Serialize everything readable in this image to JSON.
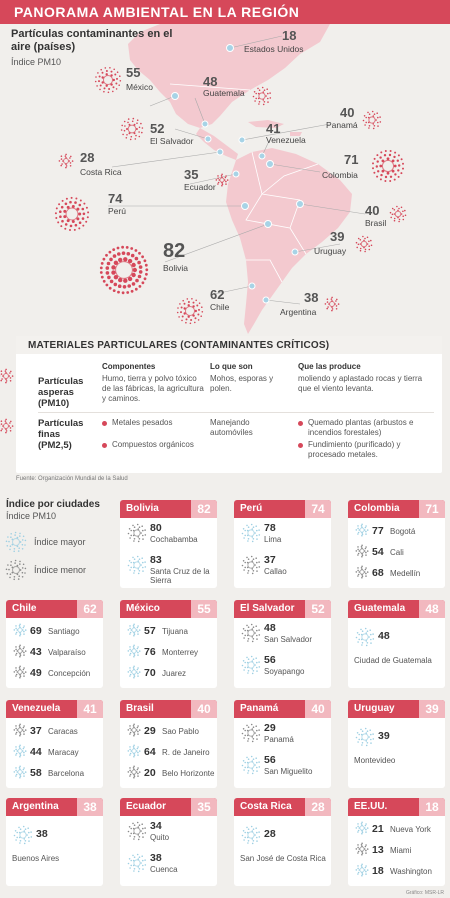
{
  "header": {
    "title": "PANORAMA AMBIENTAL EN LA REGIÓN"
  },
  "map": {
    "title": "Partículas contaminantes en el aire (países)",
    "subtitle": "Índice PM10",
    "countries": [
      {
        "name": "Estados Unidos",
        "value": "18"
      },
      {
        "name": "México",
        "value": "55"
      },
      {
        "name": "Guatemala",
        "value": "48"
      },
      {
        "name": "El Salvador",
        "value": "52"
      },
      {
        "name": "Panamá",
        "value": "40"
      },
      {
        "name": "Venezuela",
        "value": "41"
      },
      {
        "name": "Costa Rica",
        "value": "28"
      },
      {
        "name": "Colombia",
        "value": "71"
      },
      {
        "name": "Ecuador",
        "value": "35"
      },
      {
        "name": "Perú",
        "value": "74"
      },
      {
        "name": "Brasil",
        "value": "40"
      },
      {
        "name": "Uruguay",
        "value": "39"
      },
      {
        "name": "Bolivia",
        "value": "82"
      },
      {
        "name": "Chile",
        "value": "62"
      },
      {
        "name": "Argentina",
        "value": "38"
      }
    ]
  },
  "materials": {
    "heading": "MATERIALES PARTICULARES (CONTAMINANTES CRÍTICOS)",
    "col_components": "Componentes",
    "col_what": "Lo que son",
    "col_produce": "Que las produce",
    "coarse": {
      "name": "Partículas asperas (PM10)",
      "components": "Humo, tierra y polvo tóxico de las fábricas, la agricultura y caminos.",
      "what": "Mohos, esporas y polen.",
      "produce": "moliendo y aplastado rocas y tierra que el viento levanta."
    },
    "fine": {
      "name": "Partículas finas (PM2,5)",
      "components": [
        "Metales pesados",
        "Compuestos orgánicos"
      ],
      "what": "Manejando automóviles",
      "produce": [
        "Quemado plantas (arbustos e incendios forestales)",
        "Fundimiento (purificado) y procesado metales."
      ]
    },
    "source": "Fuente: Organización Mundial de la Salud"
  },
  "cities": {
    "title": "Índice por ciudades",
    "subtitle": "Índice PM10",
    "legend_high": "Índice mayor",
    "legend_low": "Índice menor",
    "cards": [
      {
        "country": "Bolivia",
        "value": "82",
        "rows": [
          {
            "v": "80",
            "c": "Cochabamba"
          },
          {
            "v": "83",
            "c": "Santa Cruz de la Sierra"
          }
        ]
      },
      {
        "country": "Perú",
        "value": "74",
        "rows": [
          {
            "v": "78",
            "c": "Lima"
          },
          {
            "v": "37",
            "c": "Callao"
          }
        ]
      },
      {
        "country": "Colombia",
        "value": "71",
        "rows": [
          {
            "v": "77",
            "c": "Bogotá"
          },
          {
            "v": "54",
            "c": "Cali"
          },
          {
            "v": "68",
            "c": "Medellín"
          }
        ]
      },
      {
        "country": "Chile",
        "value": "62",
        "rows": [
          {
            "v": "69",
            "c": "Santiago"
          },
          {
            "v": "43",
            "c": "Valparaíso"
          },
          {
            "v": "49",
            "c": "Concepción"
          }
        ]
      },
      {
        "country": "México",
        "value": "55",
        "rows": [
          {
            "v": "57",
            "c": "Tijuana"
          },
          {
            "v": "76",
            "c": "Monterrey"
          },
          {
            "v": "70",
            "c": "Juarez"
          }
        ]
      },
      {
        "country": "El Salvador",
        "value": "52",
        "rows": [
          {
            "v": "48",
            "c": "San Salvador"
          },
          {
            "v": "56",
            "c": "Soyapango"
          }
        ]
      },
      {
        "country": "Guatemala",
        "value": "48",
        "rows": [
          {
            "v": "48",
            "c": "Ciudad de Guatemala"
          }
        ]
      },
      {
        "country": "Venezuela",
        "value": "41",
        "rows": [
          {
            "v": "37",
            "c": "Caracas"
          },
          {
            "v": "44",
            "c": "Maracay"
          },
          {
            "v": "58",
            "c": "Barcelona"
          }
        ]
      },
      {
        "country": "Brasil",
        "value": "40",
        "rows": [
          {
            "v": "29",
            "c": "Sao Pablo"
          },
          {
            "v": "64",
            "c": "R. de Janeiro"
          },
          {
            "v": "20",
            "c": "Belo Horizonte"
          }
        ]
      },
      {
        "country": "Panamá",
        "value": "40",
        "rows": [
          {
            "v": "29",
            "c": "Panamá"
          },
          {
            "v": "56",
            "c": "San Miguelito"
          }
        ]
      },
      {
        "country": "Uruguay",
        "value": "39",
        "rows": [
          {
            "v": "39",
            "c": "Montevideo"
          }
        ]
      },
      {
        "country": "Argentina",
        "value": "38",
        "rows": [
          {
            "v": "38",
            "c": "Buenos Aires"
          }
        ]
      },
      {
        "country": "Ecuador",
        "value": "35",
        "rows": [
          {
            "v": "34",
            "c": "Quito"
          },
          {
            "v": "38",
            "c": "Cuenca"
          }
        ]
      },
      {
        "country": "Costa Rica",
        "value": "28",
        "rows": [
          {
            "v": "28",
            "c": "San José de Costa Rica"
          }
        ]
      },
      {
        "country": "EE.UU.",
        "value": "18",
        "rows": [
          {
            "v": "21",
            "c": "Nueva York"
          },
          {
            "v": "13",
            "c": "Miami"
          },
          {
            "v": "18",
            "c": "Washington"
          }
        ]
      }
    ]
  },
  "credit": "Gráfico: MSR-LR",
  "colors": {
    "accent": "#d6485a",
    "accent_light": "#f2b8bf",
    "land": "#f3c9cf",
    "high_icon": "#9fd0e3",
    "low_icon": "#8a8a8a"
  }
}
